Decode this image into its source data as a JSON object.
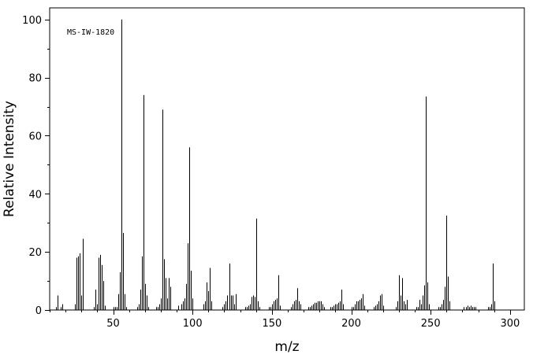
{
  "chart_data": {
    "type": "bar",
    "title": "",
    "annotation": "MS-IW-1820",
    "xlabel": "m/z",
    "ylabel": "Relative Intensity",
    "xlim": [
      10,
      309
    ],
    "ylim": [
      0,
      104
    ],
    "xticks": [
      50,
      100,
      150,
      200,
      250,
      300
    ],
    "yticks": [
      0,
      20,
      40,
      60,
      80,
      100
    ],
    "grid": false,
    "peaks": [
      [
        14,
        1
      ],
      [
        15,
        5
      ],
      [
        17,
        1
      ],
      [
        18,
        2
      ],
      [
        26,
        2
      ],
      [
        27,
        18
      ],
      [
        28,
        18.5
      ],
      [
        29,
        19.5
      ],
      [
        30,
        5
      ],
      [
        31,
        24.5
      ],
      [
        38,
        1
      ],
      [
        39,
        7
      ],
      [
        40,
        2
      ],
      [
        41,
        18
      ],
      [
        42,
        19
      ],
      [
        43,
        15.5
      ],
      [
        44,
        10
      ],
      [
        45,
        1.5
      ],
      [
        50,
        1
      ],
      [
        51,
        1
      ],
      [
        52,
        1
      ],
      [
        53,
        5.5
      ],
      [
        54,
        13
      ],
      [
        55,
        100
      ],
      [
        56,
        26.5
      ],
      [
        57,
        5.5
      ],
      [
        58,
        1
      ],
      [
        65,
        1
      ],
      [
        66,
        2
      ],
      [
        67,
        7
      ],
      [
        68,
        18.5
      ],
      [
        69,
        74
      ],
      [
        70,
        9
      ],
      [
        71,
        5
      ],
      [
        72,
        1
      ],
      [
        77,
        1
      ],
      [
        78,
        1
      ],
      [
        79,
        2
      ],
      [
        80,
        4
      ],
      [
        81,
        69
      ],
      [
        82,
        17.5
      ],
      [
        83,
        11
      ],
      [
        84,
        4
      ],
      [
        85,
        11
      ],
      [
        86,
        8
      ],
      [
        91,
        1.5
      ],
      [
        93,
        2
      ],
      [
        94,
        3
      ],
      [
        95,
        4
      ],
      [
        96,
        9
      ],
      [
        97,
        23
      ],
      [
        98,
        56
      ],
      [
        99,
        13.5
      ],
      [
        100,
        4
      ],
      [
        107,
        2
      ],
      [
        108,
        3
      ],
      [
        109,
        9.5
      ],
      [
        110,
        6.5
      ],
      [
        111,
        14.5
      ],
      [
        112,
        3
      ],
      [
        119,
        1
      ],
      [
        120,
        2
      ],
      [
        121,
        3
      ],
      [
        122,
        5
      ],
      [
        123,
        16
      ],
      [
        124,
        5
      ],
      [
        125,
        5
      ],
      [
        126,
        2
      ],
      [
        127,
        5.5
      ],
      [
        133,
        1
      ],
      [
        134,
        1
      ],
      [
        135,
        1.5
      ],
      [
        136,
        2
      ],
      [
        137,
        4.5
      ],
      [
        138,
        5
      ],
      [
        139,
        4.5
      ],
      [
        140,
        31.5
      ],
      [
        141,
        3
      ],
      [
        142,
        1
      ],
      [
        148,
        1
      ],
      [
        149,
        1
      ],
      [
        150,
        2
      ],
      [
        151,
        3
      ],
      [
        152,
        3.5
      ],
      [
        153,
        4
      ],
      [
        154,
        12
      ],
      [
        155,
        1.5
      ],
      [
        162,
        1
      ],
      [
        163,
        2
      ],
      [
        164,
        3
      ],
      [
        165,
        3.5
      ],
      [
        166,
        7.5
      ],
      [
        167,
        3
      ],
      [
        168,
        2
      ],
      [
        173,
        1
      ],
      [
        174,
        1
      ],
      [
        175,
        1.5
      ],
      [
        176,
        2
      ],
      [
        177,
        2.5
      ],
      [
        178,
        2.5
      ],
      [
        179,
        3
      ],
      [
        180,
        3
      ],
      [
        181,
        3
      ],
      [
        182,
        2
      ],
      [
        183,
        1
      ],
      [
        187,
        1
      ],
      [
        188,
        1
      ],
      [
        189,
        1.5
      ],
      [
        190,
        2
      ],
      [
        191,
        2
      ],
      [
        192,
        2.5
      ],
      [
        193,
        3
      ],
      [
        194,
        7
      ],
      [
        195,
        2
      ],
      [
        200,
        1
      ],
      [
        201,
        1
      ],
      [
        202,
        2
      ],
      [
        203,
        3
      ],
      [
        204,
        3
      ],
      [
        205,
        3.5
      ],
      [
        206,
        4
      ],
      [
        207,
        5.5
      ],
      [
        208,
        1.5
      ],
      [
        214,
        1
      ],
      [
        215,
        1.5
      ],
      [
        216,
        2
      ],
      [
        217,
        3
      ],
      [
        218,
        5
      ],
      [
        219,
        5.5
      ],
      [
        220,
        1.5
      ],
      [
        228,
        1
      ],
      [
        229,
        3
      ],
      [
        230,
        12
      ],
      [
        231,
        5
      ],
      [
        232,
        11
      ],
      [
        233,
        3
      ],
      [
        234,
        2
      ],
      [
        235,
        3.5
      ],
      [
        241,
        1
      ],
      [
        242,
        1
      ],
      [
        243,
        3.5
      ],
      [
        244,
        2
      ],
      [
        245,
        5
      ],
      [
        246,
        8.5
      ],
      [
        247,
        73.5
      ],
      [
        248,
        9.5
      ],
      [
        249,
        2
      ],
      [
        255,
        1
      ],
      [
        256,
        1
      ],
      [
        257,
        2
      ],
      [
        258,
        3.5
      ],
      [
        259,
        8
      ],
      [
        260,
        32.5
      ],
      [
        261,
        11.5
      ],
      [
        262,
        3
      ],
      [
        271,
        1
      ],
      [
        272,
        1
      ],
      [
        273,
        1.5
      ],
      [
        274,
        1
      ],
      [
        275,
        1.5
      ],
      [
        276,
        1
      ],
      [
        277,
        1
      ],
      [
        278,
        1
      ],
      [
        286,
        1
      ],
      [
        287,
        1
      ],
      [
        288,
        2
      ],
      [
        289,
        16
      ],
      [
        290,
        3
      ]
    ]
  }
}
